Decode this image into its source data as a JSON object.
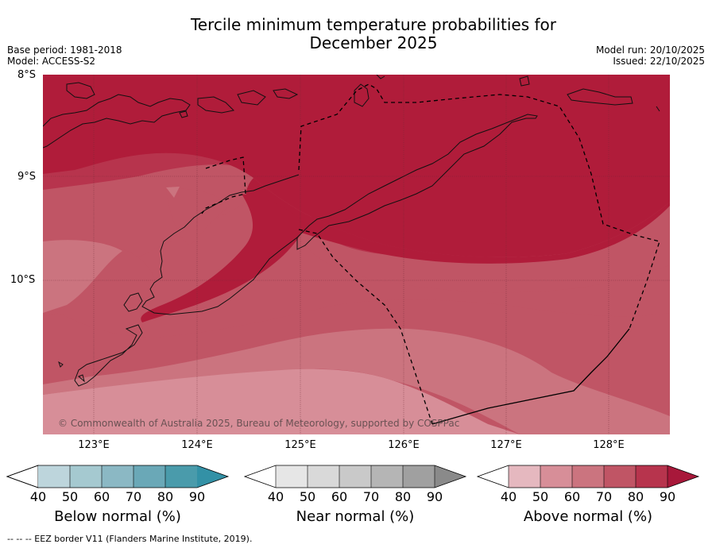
{
  "title_line1": "Tercile minimum temperature probabilities for",
  "title_line2": "December 2025",
  "base_period": "Base period: 1981-2018",
  "model": "Model: ACCESS-S2",
  "model_run": "Model run: 20/10/2025",
  "issued": "Issued: 22/10/2025",
  "lat_labels": [
    "8°S",
    "9°S",
    "10°S"
  ],
  "lon_labels": [
    "123°E",
    "124°E",
    "125°E",
    "126°E",
    "127°E",
    "128°E"
  ],
  "copyright": "© Commonwealth of Australia 2025, Bureau of Meteorology, supported by COSPPac",
  "colorbars": [
    {
      "title": "Below normal (%)",
      "ticks": [
        "40",
        "50",
        "60",
        "70",
        "80",
        "90"
      ],
      "colors": [
        "#bdd5dc",
        "#a5c9d0",
        "#8bb8c4",
        "#6aa8b7",
        "#4a9bab",
        "#3391a6"
      ]
    },
    {
      "title": "Near normal (%)",
      "ticks": [
        "40",
        "50",
        "60",
        "70",
        "80",
        "90"
      ],
      "colors": [
        "#e6e6e6",
        "#d9d9d9",
        "#c9c9c9",
        "#b5b5b5",
        "#a0a0a0",
        "#8a8a8a"
      ]
    },
    {
      "title": "Above normal (%)",
      "ticks": [
        "40",
        "50",
        "60",
        "70",
        "80",
        "90"
      ],
      "colors": [
        "#e5b8bf",
        "#d78e98",
        "#cb747f",
        "#c05565",
        "#b7344d",
        "#a8183a"
      ]
    }
  ],
  "footer": "-- -- -- EEZ border V11 (Flanders Marine Institute, 2019)."
}
